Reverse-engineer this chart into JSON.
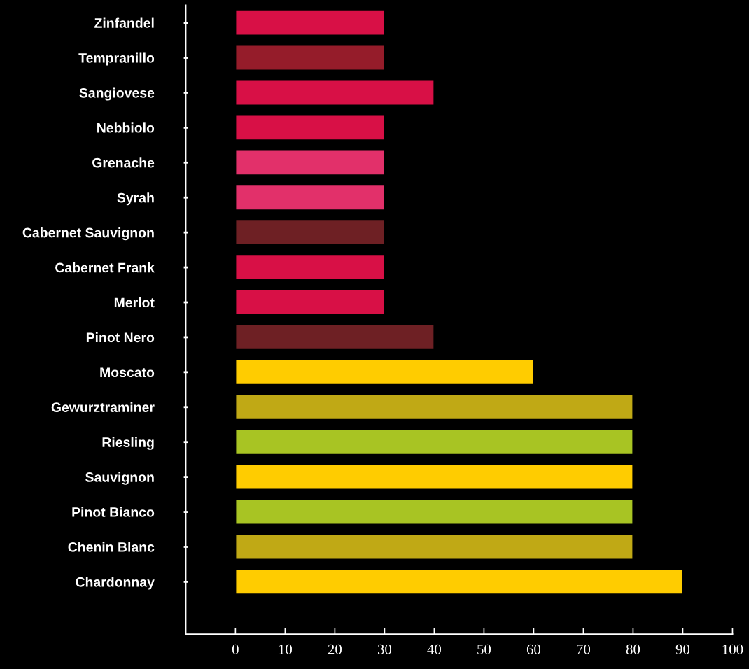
{
  "chart_data": {
    "type": "bar",
    "orientation": "horizontal",
    "categories": [
      "Zinfandel",
      "Tempranillo",
      "Sangiovese",
      "Nebbiolo",
      "Grenache",
      "Syrah",
      "Cabernet Sauvignon",
      "Cabernet Frank",
      "Merlot",
      "Pinot Nero",
      "Moscato",
      "Gewurztraminer",
      "Riesling",
      "Sauvignon",
      "Pinot Bianco",
      "Chenin Blanc",
      "Chardonnay"
    ],
    "values": [
      30,
      30,
      40,
      30,
      30,
      30,
      30,
      30,
      30,
      40,
      60,
      80,
      80,
      80,
      80,
      80,
      90
    ],
    "colors": [
      "#d81046",
      "#951c2a",
      "#d81046",
      "#d81046",
      "#e2306a",
      "#e2306a",
      "#6e2024",
      "#d81046",
      "#d81046",
      "#6e2024",
      "#ffcc00",
      "#c0a915",
      "#a8c423",
      "#ffcc00",
      "#a8c423",
      "#c0a915",
      "#ffcc00"
    ],
    "xlim": [
      -10,
      100
    ],
    "xticks": [
      0,
      10,
      20,
      30,
      40,
      50,
      60,
      70,
      80,
      90,
      100
    ],
    "grid": false,
    "legend": false
  }
}
